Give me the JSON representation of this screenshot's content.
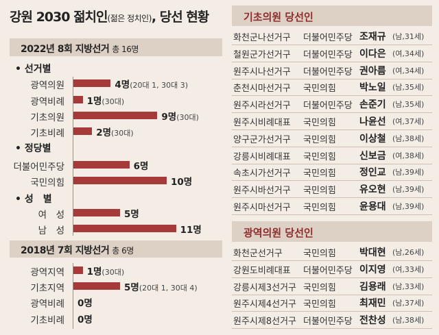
{
  "title": {
    "main": "강원 2030 젊치인",
    "paren": "(젊은 정치인)",
    "suffix": ", 당선 현황"
  },
  "chart_data": [
    {
      "type": "bar",
      "title": "2022년 8회 지방선거",
      "subtitle": "총 16명",
      "groups": [
        {
          "name": "선거별",
          "rows": [
            {
              "label": "광역의원",
              "value": 4,
              "display": "4명",
              "note": "(20대 1, 30대 3)"
            },
            {
              "label": "광역비례",
              "value": 1,
              "display": "1명",
              "note": "(30대)"
            },
            {
              "label": "기초의원",
              "value": 9,
              "display": "9명",
              "note": "(30대)"
            },
            {
              "label": "기초비례",
              "value": 2,
              "display": "2명",
              "note": "(30대)"
            }
          ]
        },
        {
          "name": "정당별",
          "rows": [
            {
              "label": "더불어민주당",
              "value": 6,
              "display": "6명",
              "note": ""
            },
            {
              "label": "국민의힘",
              "value": 10,
              "display": "10명",
              "note": ""
            }
          ]
        },
        {
          "name": "성　별",
          "rows": [
            {
              "label": "여　성",
              "value": 5,
              "display": "5명",
              "note": ""
            },
            {
              "label": "남　성",
              "value": 11,
              "display": "11명",
              "note": ""
            }
          ]
        }
      ]
    },
    {
      "type": "bar",
      "title": "2018년 7회 지방선거",
      "subtitle": "총 6명",
      "groups": [
        {
          "name": "",
          "rows": [
            {
              "label": "광역지역",
              "value": 1,
              "display": "1명",
              "note": "(30대)"
            },
            {
              "label": "기초지역",
              "value": 5,
              "display": "5명",
              "note": "(20대 1, 30대 4)"
            },
            {
              "label": "광역비례",
              "value": 0,
              "display": "0명",
              "note": ""
            },
            {
              "label": "기초비례",
              "value": 0,
              "display": "0명",
              "note": ""
            }
          ]
        }
      ]
    }
  ],
  "tables": [
    {
      "title": "기초의원 당선인",
      "rows": [
        {
          "district": "화천군나선거구",
          "party": "더불어민주당",
          "name": "조재규",
          "info": "(남,31세)"
        },
        {
          "district": "철원군가선거구",
          "party": "더불어민주당",
          "name": "이다은",
          "info": "(여,34세)"
        },
        {
          "district": "원주시나선거구",
          "party": "더불어민주당",
          "name": "권아름",
          "info": "(여,34세)"
        },
        {
          "district": "춘천시마선거구",
          "party": "국민의힘",
          "name": "박노일",
          "info": "(남,35세)"
        },
        {
          "district": "원주시라선거구",
          "party": "더불어민주당",
          "name": "손준기",
          "info": "(남,35세)"
        },
        {
          "district": "원주시비례대표",
          "party": "국민의힘",
          "name": "나윤선",
          "info": "(여,37세)"
        },
        {
          "district": "양구군가선거구",
          "party": "국민의힘",
          "name": "이상철",
          "info": "(남,38세)"
        },
        {
          "district": "강릉시비례대표",
          "party": "국민의힘",
          "name": "신보금",
          "info": "(여,38세)"
        },
        {
          "district": "속초시가선거구",
          "party": "국민의힘",
          "name": "정인교",
          "info": "(남,39세)"
        },
        {
          "district": "원주시바선거구",
          "party": "국민의힘",
          "name": "유오현",
          "info": "(남,39세)"
        },
        {
          "district": "원주시마선거구",
          "party": "국민의힘",
          "name": "윤용대",
          "info": "(남,39세)"
        }
      ]
    },
    {
      "title": "광역의원 당선인",
      "rows": [
        {
          "district": "화천군선거구",
          "party": "국민의힘",
          "name": "박대현",
          "info": "(남,26세)"
        },
        {
          "district": "강원도비례대표",
          "party": "더불어민주당",
          "name": "이지영",
          "info": "(여,33세)"
        },
        {
          "district": "강릉시제3선거구",
          "party": "국민의힘",
          "name": "김용래",
          "info": "(남,33세)"
        },
        {
          "district": "원주시제4선거구",
          "party": "국민의힘",
          "name": "최재민",
          "info": "(남,37세)"
        },
        {
          "district": "원주시제8선거구",
          "party": "더불어민주당",
          "name": "전찬성",
          "info": "(남,38세)"
        }
      ]
    }
  ],
  "colors": {
    "background": "#f4ede6",
    "band": "#ddd0c5",
    "bar": "#a63a3a",
    "accent_title": "#8e2d2d"
  }
}
